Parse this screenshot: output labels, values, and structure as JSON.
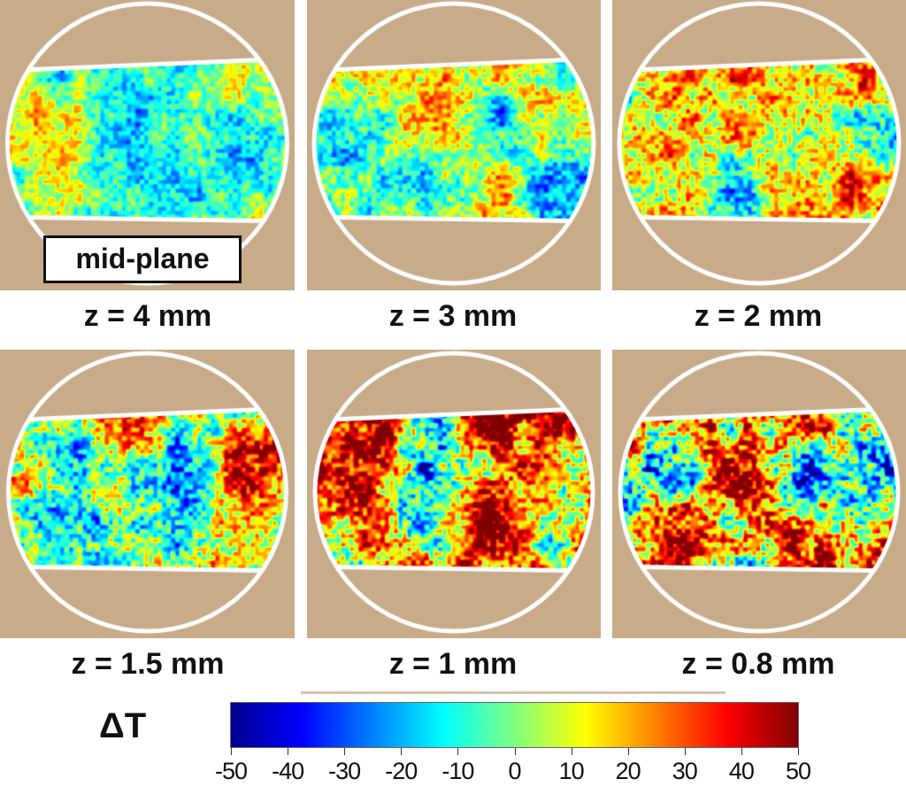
{
  "panels": [
    {
      "label": "z = 4 mm",
      "inset": "mid-plane"
    },
    {
      "label": "z = 3 mm"
    },
    {
      "label": "z = 2 mm"
    },
    {
      "label": "z = 1.5 mm"
    },
    {
      "label": "z = 1 mm"
    },
    {
      "label": "z = 0.8 mm"
    }
  ],
  "colorbar": {
    "label": "ΔT",
    "colormap": "jet",
    "range": [
      -50,
      50
    ],
    "ticks": [
      "-50",
      "-40",
      "-30",
      "-20",
      "-10",
      "0",
      "10",
      "20",
      "30",
      "40",
      "50"
    ]
  },
  "colors": {
    "background_panel": "#c8ab88",
    "mask_outline": "#ffffff"
  }
}
